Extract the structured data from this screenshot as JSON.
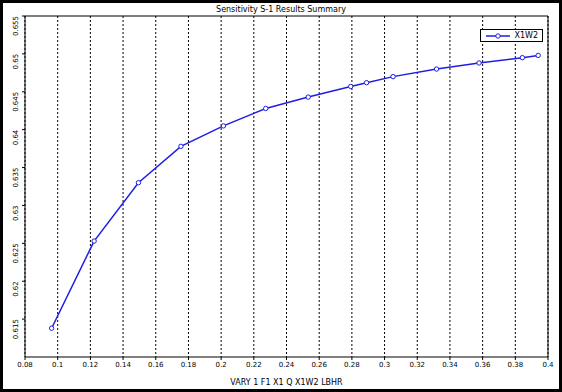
{
  "chart_data": {
    "type": "line",
    "title": "Sensitivity S-1 Results Summary",
    "xlabel": "VARY 1 F1 X1 Q X1W2 LBHR",
    "x": [
      0.0963,
      0.1223,
      0.1494,
      0.1754,
      0.2014,
      0.2273,
      0.2533,
      0.2793,
      0.289,
      0.3052,
      0.3318,
      0.3578,
      0.3843,
      0.394
    ],
    "series": [
      {
        "name": "X1W2",
        "color": "#1e1ee6",
        "marker": "circle",
        "values": [
          0.6138,
          0.6253,
          0.633,
          0.6378,
          0.6405,
          0.6428,
          0.6443,
          0.6457,
          0.6462,
          0.647,
          0.648,
          0.6488,
          0.6495,
          0.6498
        ]
      }
    ],
    "xlim": [
      0.08,
      0.4
    ],
    "xticks": [
      0.08,
      0.1,
      0.12,
      0.14,
      0.16,
      0.18,
      0.2,
      0.22,
      0.24,
      0.26,
      0.28,
      0.3,
      0.32,
      0.34,
      0.36,
      0.38,
      0.4
    ],
    "ylim": [
      0.61,
      0.655
    ],
    "yticks": [
      0.615,
      0.62,
      0.625,
      0.63,
      0.635,
      0.64,
      0.645,
      0.65,
      0.655
    ],
    "grid": "x",
    "legend": "upper right"
  }
}
